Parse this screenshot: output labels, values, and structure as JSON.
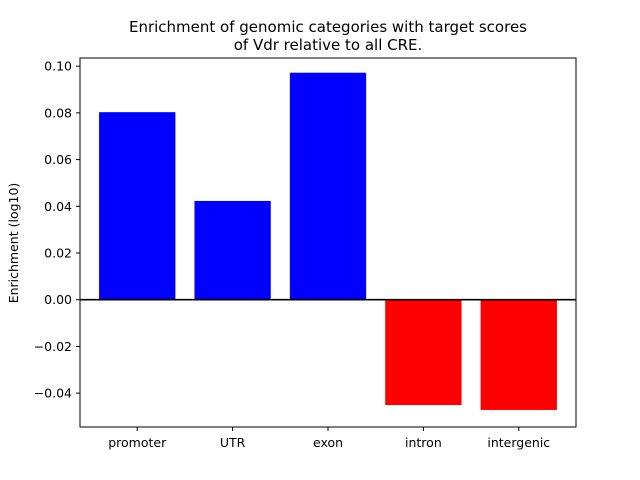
{
  "chart_data": {
    "type": "bar",
    "title_lines": [
      "Enrichment of genomic categories with target scores",
      "of Vdr relative to all CRE."
    ],
    "xlabel": "",
    "ylabel": "Enrichment (log10)",
    "categories": [
      "promoter",
      "UTR",
      "exon",
      "intron",
      "intergenic"
    ],
    "values": [
      0.0803,
      0.0423,
      0.0972,
      -0.0451,
      -0.0472
    ],
    "bar_colors": [
      "#0000ff",
      "#0000ff",
      "#0000ff",
      "#ff0000",
      "#ff0000"
    ],
    "ylim": [
      -0.0545,
      0.1035
    ],
    "yticks": [
      -0.04,
      -0.02,
      0.0,
      0.02,
      0.04,
      0.06,
      0.08,
      0.1
    ],
    "ytick_labels": [
      "−0.04",
      "−0.02",
      "0.00",
      "0.02",
      "0.04",
      "0.06",
      "0.08",
      "0.10"
    ],
    "zero_line": true,
    "grid": false
  }
}
